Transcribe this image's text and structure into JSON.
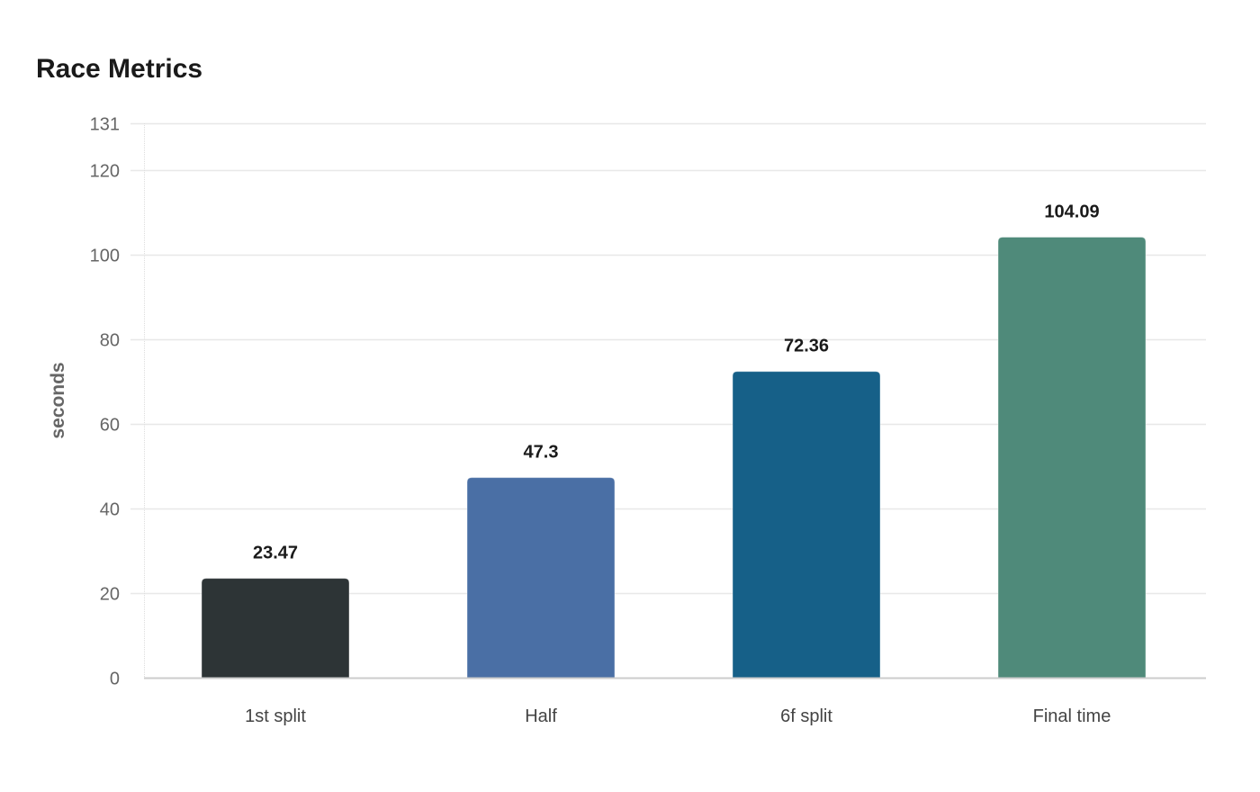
{
  "chart_data": {
    "type": "bar",
    "title": "Race Metrics",
    "xlabel": "",
    "ylabel": "seconds",
    "categories": [
      "1st split",
      "Half",
      "6f split",
      "Final time"
    ],
    "values": [
      23.47,
      47.3,
      72.36,
      104.09
    ],
    "value_labels": [
      "23.47",
      "47.3",
      "72.36",
      "104.09"
    ],
    "colors": [
      "#2d3436",
      "#4a6fa5",
      "#166088",
      "#4f8a7a"
    ],
    "ylim": [
      0,
      131
    ],
    "yticks": [
      0,
      20,
      40,
      60,
      80,
      100,
      120,
      131
    ],
    "grid": true,
    "legend": null
  }
}
